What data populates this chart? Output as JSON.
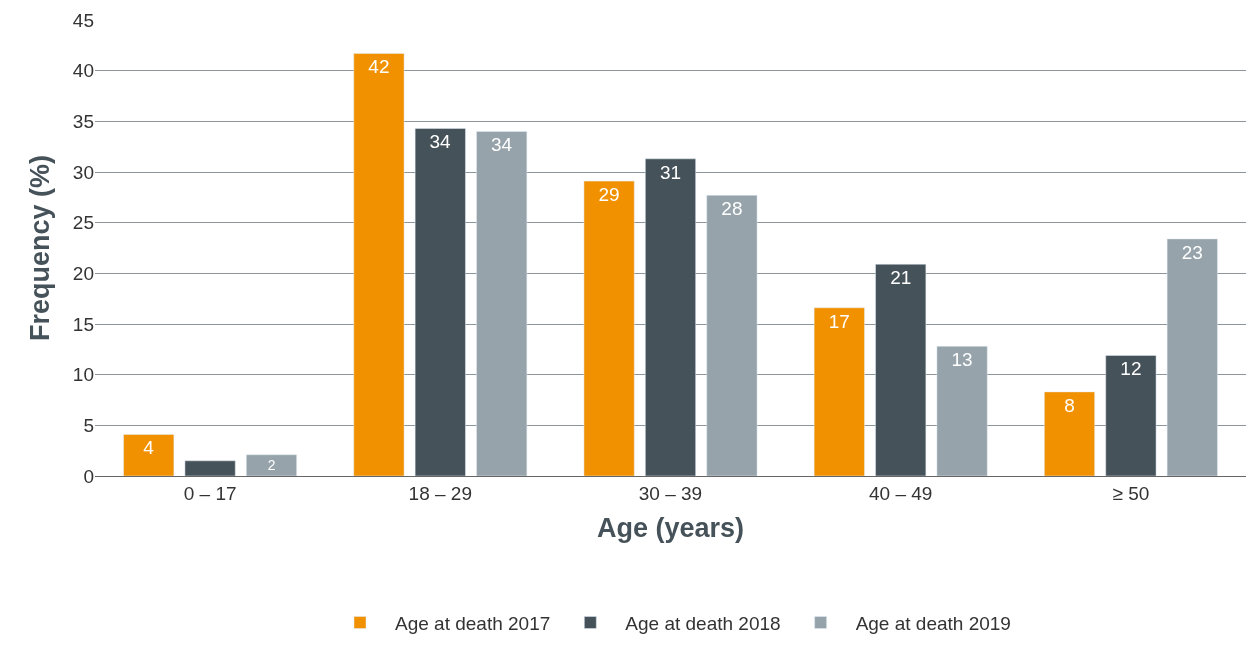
{
  "chart_data": {
    "type": "bar",
    "xlabel": "Age (years)",
    "ylabel": "Frequency (%)",
    "categories": [
      "0 – 17",
      "18 – 29",
      "30 – 39",
      "40 – 49",
      "≥ 50"
    ],
    "series": [
      {
        "name": "Age at death 2017",
        "color": "#f29100",
        "values": [
          4.1,
          41.7,
          29.1,
          16.6,
          8.3
        ],
        "value_labels": [
          "4",
          "42",
          "29",
          "17",
          "8"
        ]
      },
      {
        "name": "Age at death 2018",
        "color": "#465259",
        "values": [
          1.5,
          34.3,
          31.3,
          20.9,
          11.9
        ],
        "value_labels": [
          null,
          "34",
          "31",
          "21",
          "12"
        ]
      },
      {
        "name": "Age at death 2019",
        "color": "#96a3aa",
        "values": [
          2.1,
          34.0,
          27.7,
          12.8,
          23.4
        ],
        "value_labels": [
          "2",
          "34",
          "28",
          "13",
          "23"
        ]
      }
    ],
    "ylim": [
      0,
      45
    ],
    "yticks": [
      0,
      5,
      10,
      15,
      20,
      25,
      30,
      35,
      40,
      45
    ],
    "grid": "y",
    "legend": "bottom"
  }
}
